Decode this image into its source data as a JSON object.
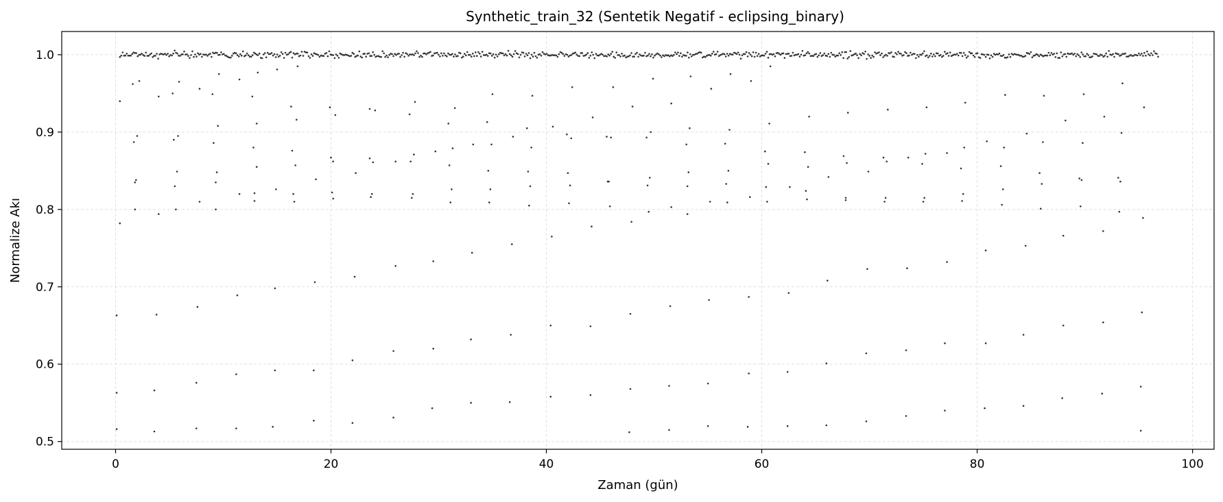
{
  "chart_data": {
    "type": "scatter",
    "title": "Synthetic_train_32 (Sentetik Negatif - eclipsing_binary)",
    "xlabel": "Zaman (gün)",
    "ylabel": "Normalize Akı",
    "xlim": [
      -5,
      102
    ],
    "ylim": [
      0.49,
      1.03
    ],
    "xticks": [
      0,
      20,
      40,
      60,
      80,
      100
    ],
    "yticks": [
      0.5,
      0.6,
      0.7,
      0.8,
      0.9,
      1.0
    ],
    "ytick_labels": [
      "0.5",
      "0.6",
      "0.7",
      "0.8",
      "0.9",
      "1.0"
    ],
    "grid": true,
    "legend": "none",
    "marker_color": "#333333",
    "series": [
      {
        "baseline": {
          "x_range": [
            0.4,
            96.8
          ],
          "count": 760,
          "y_center": 1.0,
          "y_scatter": 0.004
        },
        "eclipse_points": [
          [
            0.1,
            0.516
          ],
          [
            0.1,
            0.563
          ],
          [
            0.1,
            0.663
          ],
          [
            0.4,
            0.782
          ],
          [
            0.4,
            0.94
          ],
          [
            1.6,
            0.962
          ],
          [
            1.7,
            0.887
          ],
          [
            1.8,
            0.835
          ],
          [
            1.9,
            0.838
          ],
          [
            1.8,
            0.8
          ],
          [
            2.0,
            0.895
          ],
          [
            2.2,
            0.966
          ],
          [
            3.6,
            0.513
          ],
          [
            3.6,
            0.566
          ],
          [
            3.8,
            0.664
          ],
          [
            4.0,
            0.794
          ],
          [
            4.0,
            0.946
          ],
          [
            5.3,
            0.95
          ],
          [
            5.4,
            0.89
          ],
          [
            5.5,
            0.83
          ],
          [
            5.6,
            0.8
          ],
          [
            5.7,
            0.849
          ],
          [
            5.8,
            0.895
          ],
          [
            5.9,
            0.965
          ],
          [
            7.5,
            0.517
          ],
          [
            7.5,
            0.576
          ],
          [
            7.6,
            0.674
          ],
          [
            7.8,
            0.81
          ],
          [
            7.8,
            0.956
          ],
          [
            9.0,
            0.949
          ],
          [
            9.1,
            0.886
          ],
          [
            9.3,
            0.835
          ],
          [
            9.3,
            0.8
          ],
          [
            9.4,
            0.848
          ],
          [
            9.5,
            0.908
          ],
          [
            9.6,
            0.975
          ],
          [
            11.2,
            0.517
          ],
          [
            11.2,
            0.587
          ],
          [
            11.3,
            0.689
          ],
          [
            11.5,
            0.82
          ],
          [
            11.5,
            0.968
          ],
          [
            12.7,
            0.946
          ],
          [
            12.8,
            0.88
          ],
          [
            12.9,
            0.821
          ],
          [
            12.9,
            0.811
          ],
          [
            13.1,
            0.855
          ],
          [
            13.1,
            0.911
          ],
          [
            13.2,
            0.977
          ],
          [
            14.6,
            0.519
          ],
          [
            14.8,
            0.592
          ],
          [
            14.8,
            0.698
          ],
          [
            14.9,
            0.826
          ],
          [
            15.0,
            0.981
          ],
          [
            16.3,
            0.933
          ],
          [
            16.4,
            0.876
          ],
          [
            16.5,
            0.82
          ],
          [
            16.6,
            0.81
          ],
          [
            16.7,
            0.857
          ],
          [
            16.8,
            0.916
          ],
          [
            16.9,
            0.985
          ],
          [
            18.4,
            0.527
          ],
          [
            18.4,
            0.592
          ],
          [
            18.5,
            0.706
          ],
          [
            18.6,
            0.839
          ],
          [
            19.9,
            0.932
          ],
          [
            20.0,
            0.867
          ],
          [
            20.1,
            0.822
          ],
          [
            20.2,
            0.814
          ],
          [
            20.2,
            0.862
          ],
          [
            20.4,
            0.922
          ],
          [
            22.0,
            0.524
          ],
          [
            22.0,
            0.605
          ],
          [
            22.2,
            0.713
          ],
          [
            22.3,
            0.847
          ],
          [
            23.6,
            0.93
          ],
          [
            23.6,
            0.866
          ],
          [
            23.7,
            0.816
          ],
          [
            23.8,
            0.82
          ],
          [
            23.9,
            0.861
          ],
          [
            24.1,
            0.928
          ],
          [
            25.8,
            0.531
          ],
          [
            25.8,
            0.617
          ],
          [
            26.0,
            0.727
          ],
          [
            26.0,
            0.862
          ],
          [
            27.3,
            0.923
          ],
          [
            27.4,
            0.862
          ],
          [
            27.5,
            0.815
          ],
          [
            27.6,
            0.82
          ],
          [
            27.7,
            0.871
          ],
          [
            27.8,
            0.939
          ],
          [
            29.4,
            0.543
          ],
          [
            29.5,
            0.62
          ],
          [
            29.5,
            0.733
          ],
          [
            29.7,
            0.875
          ],
          [
            30.9,
            0.911
          ],
          [
            31.0,
            0.857
          ],
          [
            31.1,
            0.809
          ],
          [
            31.2,
            0.826
          ],
          [
            31.3,
            0.879
          ],
          [
            31.5,
            0.931
          ],
          [
            33.0,
            0.55
          ],
          [
            33.0,
            0.632
          ],
          [
            33.1,
            0.744
          ],
          [
            33.2,
            0.884
          ],
          [
            34.5,
            0.913
          ],
          [
            34.6,
            0.85
          ],
          [
            34.7,
            0.809
          ],
          [
            34.8,
            0.826
          ],
          [
            34.9,
            0.884
          ],
          [
            35.0,
            0.949
          ],
          [
            36.6,
            0.551
          ],
          [
            36.7,
            0.638
          ],
          [
            36.8,
            0.755
          ],
          [
            36.9,
            0.894
          ],
          [
            38.2,
            0.905
          ],
          [
            38.3,
            0.849
          ],
          [
            38.4,
            0.805
          ],
          [
            38.5,
            0.83
          ],
          [
            38.6,
            0.88
          ],
          [
            38.7,
            0.947
          ],
          [
            40.4,
            0.558
          ],
          [
            40.4,
            0.65
          ],
          [
            40.5,
            0.765
          ],
          [
            40.6,
            0.907
          ],
          [
            41.9,
            0.897
          ],
          [
            42.0,
            0.847
          ],
          [
            42.1,
            0.808
          ],
          [
            42.2,
            0.831
          ],
          [
            42.3,
            0.892
          ],
          [
            42.4,
            0.958
          ],
          [
            44.1,
            0.56
          ],
          [
            44.1,
            0.649
          ],
          [
            44.2,
            0.778
          ],
          [
            44.3,
            0.919
          ],
          [
            45.6,
            0.894
          ],
          [
            45.7,
            0.836
          ],
          [
            45.8,
            0.836
          ],
          [
            45.9,
            0.804
          ],
          [
            46.0,
            0.893
          ],
          [
            46.2,
            0.958
          ],
          [
            47.7,
            0.512
          ],
          [
            47.8,
            0.568
          ],
          [
            47.8,
            0.665
          ],
          [
            47.9,
            0.784
          ],
          [
            48.0,
            0.933
          ],
          [
            49.3,
            0.893
          ],
          [
            49.4,
            0.831
          ],
          [
            49.5,
            0.797
          ],
          [
            49.6,
            0.841
          ],
          [
            49.7,
            0.9
          ],
          [
            49.9,
            0.969
          ],
          [
            51.4,
            0.515
          ],
          [
            51.4,
            0.572
          ],
          [
            51.5,
            0.675
          ],
          [
            51.6,
            0.803
          ],
          [
            51.6,
            0.937
          ],
          [
            53.0,
            0.884
          ],
          [
            53.1,
            0.83
          ],
          [
            53.1,
            0.794
          ],
          [
            53.2,
            0.848
          ],
          [
            53.3,
            0.905
          ],
          [
            53.4,
            0.972
          ],
          [
            55.0,
            0.52
          ],
          [
            55.0,
            0.575
          ],
          [
            55.1,
            0.683
          ],
          [
            55.2,
            0.81
          ],
          [
            55.3,
            0.956
          ],
          [
            56.6,
            0.885
          ],
          [
            56.7,
            0.833
          ],
          [
            56.8,
            0.809
          ],
          [
            56.9,
            0.85
          ],
          [
            57.0,
            0.903
          ],
          [
            57.1,
            0.975
          ],
          [
            58.7,
            0.519
          ],
          [
            58.8,
            0.588
          ],
          [
            58.8,
            0.687
          ],
          [
            58.9,
            0.816
          ],
          [
            59.0,
            0.966
          ],
          [
            60.3,
            0.875
          ],
          [
            60.4,
            0.829
          ],
          [
            60.5,
            0.81
          ],
          [
            60.6,
            0.859
          ],
          [
            60.7,
            0.911
          ],
          [
            60.8,
            0.985
          ],
          [
            62.4,
            0.52
          ],
          [
            62.4,
            0.59
          ],
          [
            62.5,
            0.692
          ],
          [
            62.6,
            0.829
          ],
          [
            64.0,
            0.874
          ],
          [
            64.1,
            0.824
          ],
          [
            64.2,
            0.813
          ],
          [
            64.3,
            0.855
          ],
          [
            64.4,
            0.92
          ],
          [
            66.0,
            0.521
          ],
          [
            66.0,
            0.601
          ],
          [
            66.1,
            0.708
          ],
          [
            66.2,
            0.842
          ],
          [
            67.6,
            0.869
          ],
          [
            67.8,
            0.815
          ],
          [
            67.8,
            0.812
          ],
          [
            67.9,
            0.86
          ],
          [
            68.0,
            0.925
          ],
          [
            69.7,
            0.526
          ],
          [
            69.7,
            0.614
          ],
          [
            69.8,
            0.723
          ],
          [
            69.9,
            0.849
          ],
          [
            71.3,
            0.867
          ],
          [
            71.4,
            0.81
          ],
          [
            71.5,
            0.815
          ],
          [
            71.6,
            0.862
          ],
          [
            71.7,
            0.929
          ],
          [
            73.4,
            0.533
          ],
          [
            73.4,
            0.618
          ],
          [
            73.5,
            0.724
          ],
          [
            73.6,
            0.867
          ],
          [
            74.9,
            0.859
          ],
          [
            75.0,
            0.81
          ],
          [
            75.1,
            0.815
          ],
          [
            75.2,
            0.872
          ],
          [
            75.3,
            0.932
          ],
          [
            77.0,
            0.54
          ],
          [
            77.0,
            0.627
          ],
          [
            77.2,
            0.732
          ],
          [
            77.2,
            0.873
          ],
          [
            78.5,
            0.853
          ],
          [
            78.6,
            0.811
          ],
          [
            78.7,
            0.82
          ],
          [
            78.8,
            0.88
          ],
          [
            78.9,
            0.938
          ],
          [
            80.7,
            0.543
          ],
          [
            80.8,
            0.627
          ],
          [
            80.8,
            0.747
          ],
          [
            80.9,
            0.888
          ],
          [
            82.2,
            0.856
          ],
          [
            82.3,
            0.806
          ],
          [
            82.4,
            0.826
          ],
          [
            82.5,
            0.88
          ],
          [
            82.6,
            0.948
          ],
          [
            84.3,
            0.546
          ],
          [
            84.3,
            0.638
          ],
          [
            84.5,
            0.753
          ],
          [
            84.6,
            0.898
          ],
          [
            85.8,
            0.847
          ],
          [
            85.9,
            0.801
          ],
          [
            86.0,
            0.833
          ],
          [
            86.1,
            0.887
          ],
          [
            86.2,
            0.947
          ],
          [
            87.9,
            0.556
          ],
          [
            88.0,
            0.65
          ],
          [
            88.0,
            0.766
          ],
          [
            88.2,
            0.915
          ],
          [
            89.5,
            0.84
          ],
          [
            89.6,
            0.804
          ],
          [
            89.7,
            0.838
          ],
          [
            89.8,
            0.886
          ],
          [
            89.9,
            0.949
          ],
          [
            91.6,
            0.562
          ],
          [
            91.7,
            0.654
          ],
          [
            91.7,
            0.772
          ],
          [
            91.8,
            0.92
          ],
          [
            93.1,
            0.841
          ],
          [
            93.2,
            0.797
          ],
          [
            93.3,
            0.836
          ],
          [
            93.4,
            0.899
          ],
          [
            93.5,
            0.963
          ],
          [
            95.2,
            0.514
          ],
          [
            95.2,
            0.571
          ],
          [
            95.3,
            0.667
          ],
          [
            95.4,
            0.789
          ],
          [
            95.5,
            0.932
          ]
        ]
      }
    ]
  }
}
